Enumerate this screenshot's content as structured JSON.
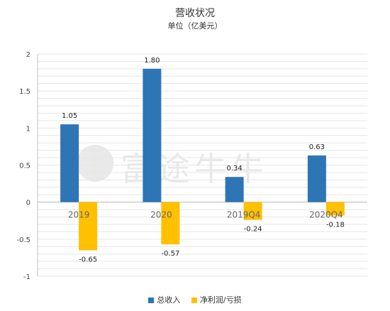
{
  "chart_data": {
    "type": "bar",
    "title": "营收状况",
    "subtitle": "单位（亿美元）",
    "categories": [
      "2019",
      "2020",
      "2019Q4",
      "2020Q4"
    ],
    "series": [
      {
        "name": "总收入",
        "values": [
          1.05,
          1.8,
          0.34,
          0.63
        ],
        "labels": [
          "1.05",
          "1.80",
          "0.34",
          "0.63"
        ],
        "color": "#2E75B6"
      },
      {
        "name": "净利润/亏损",
        "values": [
          -0.65,
          -0.57,
          -0.24,
          -0.18
        ],
        "labels": [
          "-0.65",
          "-0.57",
          "-0.24",
          "-0.18"
        ],
        "color": "#FFC000"
      }
    ],
    "yticks": [
      "2",
      "1.5",
      "1",
      "0.5",
      "0",
      "-0.5",
      "-1"
    ],
    "ylim": [
      -1,
      2
    ],
    "grid": true,
    "legend": "bottom"
  },
  "watermark": {
    "text": "富途牛牛"
  }
}
